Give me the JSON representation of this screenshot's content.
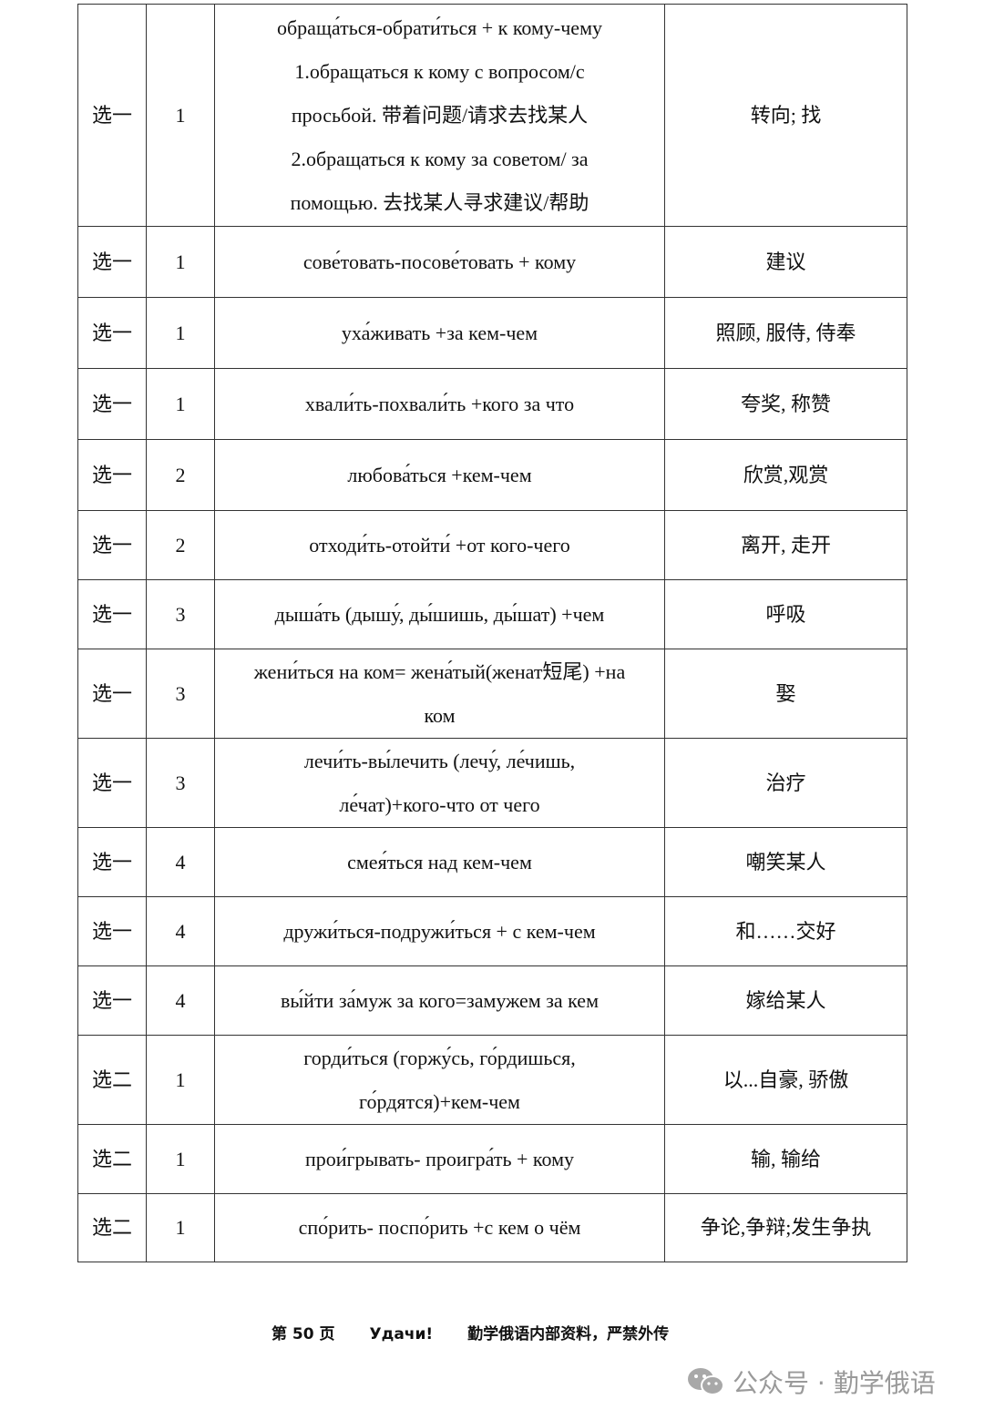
{
  "rows": [
    {
      "cat": "选一",
      "lesson": "1",
      "phrase": "обраща́ться-обрати́ться + к кому-чему\n1.обращаться к кому с вопросом/с\nпросьбой.  带着问题/请求去找某人\n2.обращаться к кому за советом/ за\nпомощью.  去找某人寻求建议/帮助",
      "meaning": "转向; 找"
    },
    {
      "cat": "选一",
      "lesson": "1",
      "phrase": "сове́товать-посове́товать + кому",
      "meaning": "建议"
    },
    {
      "cat": "选一",
      "lesson": "1",
      "phrase": "уха́живать    +за кем-чем",
      "meaning": "照顾, 服侍, 侍奉"
    },
    {
      "cat": "选一",
      "lesson": "1",
      "phrase": "хвали́ть-похвали́ть    +кого за что",
      "meaning": "夸奖, 称赞"
    },
    {
      "cat": "选一",
      "lesson": "2",
      "phrase": "любова́ться    +кем-чем",
      "meaning": "欣赏,观赏"
    },
    {
      "cat": "选一",
      "lesson": "2",
      "phrase": "отходи́ть-отойти́  +от кого-чего",
      "meaning": "离开, 走开"
    },
    {
      "cat": "选一",
      "lesson": "3",
      "phrase": "дыша́ть (дышу́, ды́шишь, ды́шат) +чем",
      "meaning": "呼吸"
    },
    {
      "cat": "选一",
      "lesson": "3",
      "phrase": "жени́ться на ком= жена́тый(женат短尾) +на\nком",
      "meaning": "娶"
    },
    {
      "cat": "选一",
      "lesson": "3",
      "phrase": "лечи́ть-вы́лечить (лечу́, ле́чишь,\nле́чат)+кого-что от чего",
      "meaning": "治疗"
    },
    {
      "cat": "选一",
      "lesson": "4",
      "phrase": "смея́ться над кем-чем",
      "meaning": "嘲笑某人"
    },
    {
      "cat": "选一",
      "lesson": "4",
      "phrase": "дружи́ться-подружи́ться    + с кем-чем",
      "meaning": "和……交好"
    },
    {
      "cat": "选一",
      "lesson": "4",
      "phrase": "вы́йти за́муж за кого=замужем за кем",
      "meaning": "嫁给某人"
    },
    {
      "cat": "选二",
      "lesson": "1",
      "phrase": "горди́ться (горжу́сь, го́рдишься,\nго́рдятся)+кем-чем",
      "meaning": "以...自豪, 骄傲"
    },
    {
      "cat": "选二",
      "lesson": "1",
      "phrase": "прои́грывать- проигра́ть + кому",
      "meaning": "输, 输给"
    },
    {
      "cat": "选二",
      "lesson": "1",
      "phrase": "спо́рить- поспо́рить +с кем о чём",
      "meaning": "争论,争辩;发生争执"
    }
  ],
  "footer": {
    "page": "第 50 页",
    "wish": "Удачи!",
    "notice": "勤学俄语内部资料，严禁外传"
  },
  "watermark": {
    "text": "公众号 · 勤学俄语",
    "icon": "wechat-icon"
  }
}
